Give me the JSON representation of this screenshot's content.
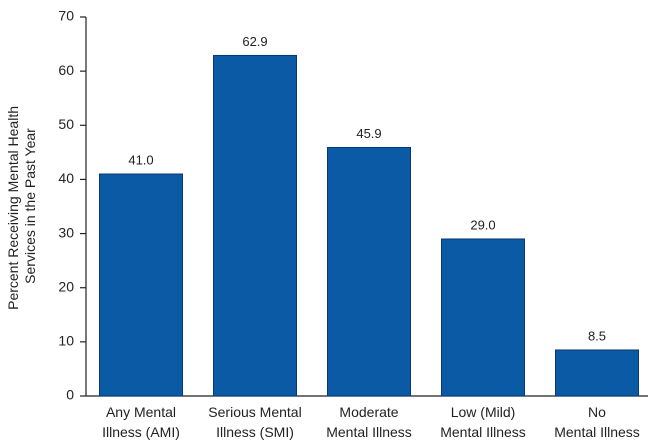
{
  "chart_data": {
    "type": "bar",
    "y_label": [
      "Percent Receiving Mental Health",
      "Services in the Past Year"
    ],
    "categories": [
      "Any Mental\nIllness (AMI)",
      "Serious Mental\nIllness (SMI)",
      "Moderate\nMental Illness",
      "Low (Mild)\nMental Illness",
      "No\nMental Illness"
    ],
    "values": [
      41,
      62.9,
      45.9,
      29,
      8.5
    ],
    "value_labels": [
      "41.0",
      "62.9",
      "45.9",
      "29.0",
      "8.5"
    ],
    "color": "#0b5aa6",
    "ylim": [
      0,
      70
    ],
    "yticks": [
      0,
      10,
      20,
      30,
      40,
      50,
      60,
      70
    ],
    "grid": false
  }
}
